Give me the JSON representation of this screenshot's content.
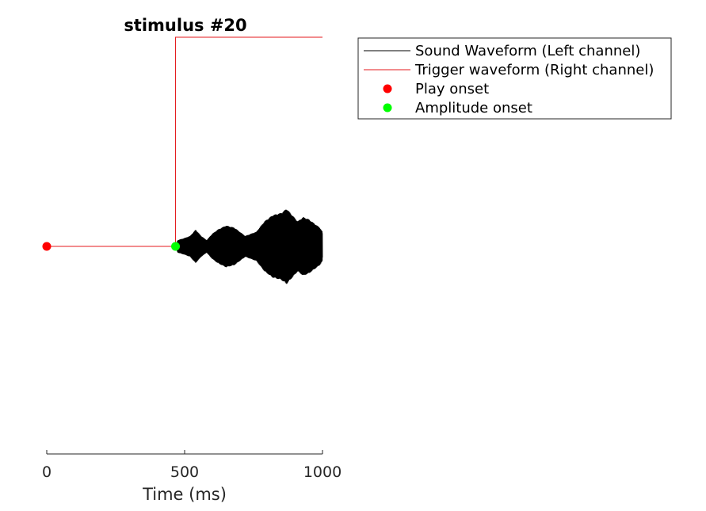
{
  "chart_data": {
    "type": "line",
    "title": "stimulus #20",
    "xlabel": "Time (ms)",
    "ylabel": "",
    "xlim": [
      0,
      1000
    ],
    "ylim": [
      -1,
      1
    ],
    "xticks": [
      0,
      500,
      1000
    ],
    "xtick_labels": [
      "0",
      "500",
      "1000"
    ],
    "y_axis_visible": false,
    "grid": false,
    "legend_position": "top-right, outside plot",
    "series": [
      {
        "name": "Sound Waveform (Left channel)",
        "color": "#000000",
        "kind": "line",
        "envelope": {
          "x": [
            465,
            475,
            500,
            520,
            540,
            560,
            580,
            600,
            620,
            650,
            680,
            700,
            720,
            740,
            760,
            790,
            820,
            850,
            870,
            890,
            910,
            930,
            950,
            970,
            990,
            1000
          ],
          "amplitude": [
            0.0,
            0.03,
            0.04,
            0.05,
            0.08,
            0.05,
            0.03,
            0.06,
            0.08,
            0.1,
            0.09,
            0.07,
            0.05,
            0.06,
            0.07,
            0.12,
            0.15,
            0.16,
            0.18,
            0.15,
            0.12,
            0.14,
            0.13,
            0.11,
            0.09,
            0.07
          ]
        }
      },
      {
        "name": "Trigger waveform (Right channel)",
        "color": "#e41a1c",
        "kind": "line",
        "x": [
          0,
          467,
          467,
          1000
        ],
        "y": [
          0,
          0,
          1,
          1
        ]
      },
      {
        "name": "Play onset",
        "color": "#ff0000",
        "kind": "marker",
        "x": [
          0
        ],
        "y": [
          0
        ]
      },
      {
        "name": "Amplitude onset",
        "color": "#00ff00",
        "kind": "marker",
        "x": [
          467
        ],
        "y": [
          0
        ]
      }
    ]
  }
}
